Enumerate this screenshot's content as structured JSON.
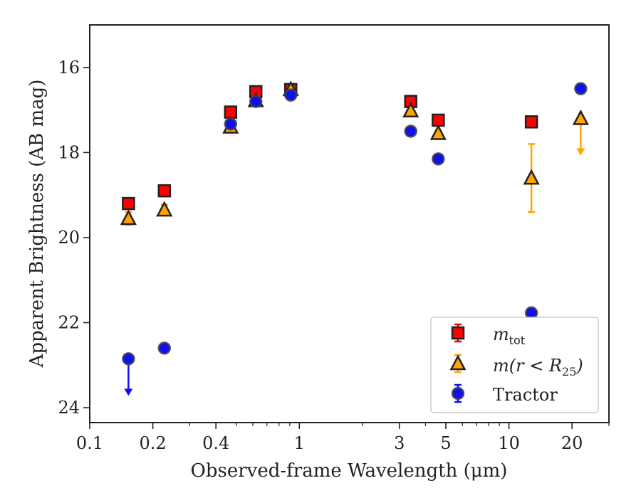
{
  "chart_data": {
    "type": "scatter",
    "xlabel": "Observed-frame Wavelength (μm)",
    "ylabel": "Apparent Brightness (AB mag)",
    "x_scale": "log",
    "y_inverted": true,
    "xlim": [
      0.1,
      30
    ],
    "ylim": [
      15.0,
      24.35
    ],
    "x_ticks": [
      0.1,
      0.2,
      0.4,
      1,
      3,
      5,
      10,
      20
    ],
    "x_tick_labels": [
      "0.1",
      "0.2",
      "0.4",
      "1",
      "3",
      "5",
      "10",
      "20"
    ],
    "x_minor_ticks": [
      0.3,
      0.5,
      0.6,
      0.7,
      0.8,
      0.9,
      2,
      4,
      6,
      7,
      8,
      9,
      30
    ],
    "y_ticks": [
      16,
      18,
      20,
      22,
      24
    ],
    "y_tick_labels": [
      "16",
      "18",
      "20",
      "22",
      "24"
    ],
    "legend_position": "lower-right",
    "series": [
      {
        "name": "m_tot",
        "legend_label": {
          "main": "m",
          "sub": "tot"
        },
        "marker": "square",
        "color": "#ff0000",
        "err_color": "#e00000",
        "points": [
          {
            "x": 0.153,
            "y": 19.2,
            "err": 0.1
          },
          {
            "x": 0.227,
            "y": 18.9,
            "err": 0.08
          },
          {
            "x": 0.47,
            "y": 17.05,
            "err": 0.05
          },
          {
            "x": 0.62,
            "y": 16.57,
            "err": 0.05
          },
          {
            "x": 0.91,
            "y": 16.52,
            "err": 0.05
          },
          {
            "x": 3.4,
            "y": 16.8,
            "err": 0.05
          },
          {
            "x": 4.6,
            "y": 17.24,
            "err": 0.05
          },
          {
            "x": 12.8,
            "y": 17.28,
            "err": 0.05
          }
        ]
      },
      {
        "name": "m(r < R25)",
        "legend_label": {
          "main": "m(r < R",
          "sub": "25",
          "suffix": ")"
        },
        "marker": "triangle",
        "color": "#ffa500",
        "err_color": "#ffa500",
        "points": [
          {
            "x": 0.153,
            "y": 19.55,
            "err": 0.15
          },
          {
            "x": 0.227,
            "y": 19.35,
            "err": 0.12
          },
          {
            "x": 0.47,
            "y": 17.4,
            "err": 0.05
          },
          {
            "x": 0.62,
            "y": 16.78,
            "err": 0.05
          },
          {
            "x": 0.91,
            "y": 16.52,
            "err": 0.05
          },
          {
            "x": 3.4,
            "y": 17.02,
            "err": 0.05
          },
          {
            "x": 4.6,
            "y": 17.55,
            "err": 0.05
          },
          {
            "x": 12.8,
            "y": 18.6,
            "err": 0.8
          },
          {
            "x": 22.0,
            "y": 17.2,
            "upper_limit": true
          }
        ]
      },
      {
        "name": "Tractor",
        "legend_label": {
          "main": "Tractor"
        },
        "marker": "circle",
        "color": "#1010ee",
        "err_color": "#1010ee",
        "points": [
          {
            "x": 0.153,
            "y": 22.85,
            "upper_limit": true
          },
          {
            "x": 0.227,
            "y": 22.6,
            "err": 0.08
          },
          {
            "x": 0.47,
            "y": 17.33,
            "err": 0.05
          },
          {
            "x": 0.62,
            "y": 16.8,
            "err": 0.05
          },
          {
            "x": 0.91,
            "y": 16.65,
            "err": 0.05
          },
          {
            "x": 3.4,
            "y": 17.5,
            "err": 0.05
          },
          {
            "x": 4.6,
            "y": 18.15,
            "err": 0.05
          },
          {
            "x": 12.8,
            "y": 21.77,
            "err": 0.05
          },
          {
            "x": 22.0,
            "y": 16.5,
            "err": 0.05
          }
        ]
      }
    ]
  }
}
